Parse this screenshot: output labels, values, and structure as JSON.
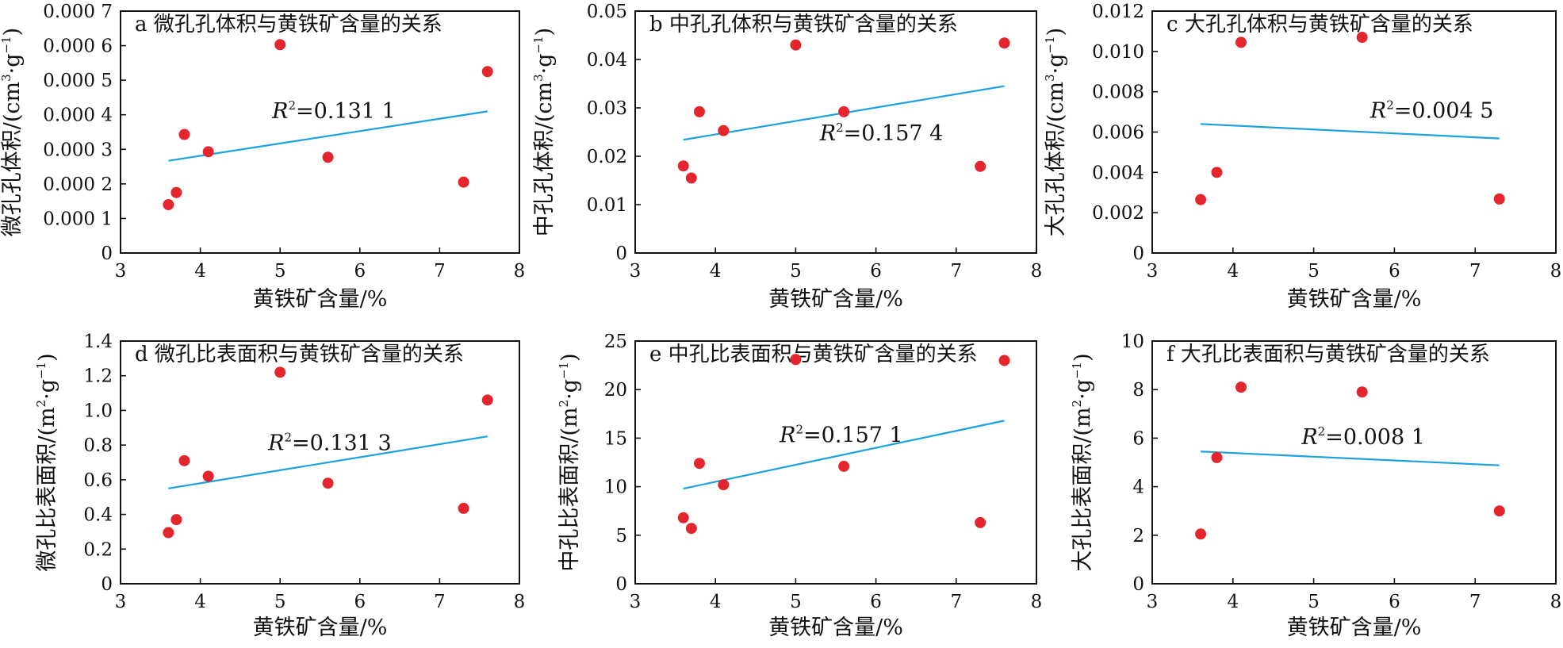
{
  "chart_data": [
    {
      "id": "a",
      "type": "scatter",
      "title": "a 微孔孔体积与黄铁矿含量的关系",
      "xlabel": "黄铁矿含量/%",
      "ylabel": {
        "main": "微孔孔体积/(cm",
        "sup1": "3",
        "mid": "·g",
        "sup2": "−1",
        "end": ")"
      },
      "xlim": [
        3,
        8
      ],
      "ylim": [
        0,
        0.0007
      ],
      "xticks": [
        3,
        4,
        5,
        6,
        7,
        8
      ],
      "xtick_labels": [
        "3",
        "4",
        "5",
        "6",
        "7",
        "8"
      ],
      "yticks": [
        0,
        0.0001,
        0.0002,
        0.0003,
        0.0004,
        0.0005,
        0.0006,
        0.0007
      ],
      "ytick_labels": [
        "0",
        "0.000 1",
        "0.000 2",
        "0.000 3",
        "0.000 4",
        "0.000 5",
        "0.000 6",
        "0.000 7"
      ],
      "x": [
        3.6,
        3.7,
        3.8,
        4.1,
        5.0,
        5.6,
        7.3,
        7.6
      ],
      "y": [
        0.00014,
        0.000175,
        0.000343,
        0.000293,
        0.000603,
        0.000277,
        0.000205,
        0.000525
      ],
      "trendline": {
        "x": [
          3.6,
          7.6
        ],
        "y": [
          0.000267,
          0.00041
        ]
      },
      "r2_label": {
        "R": "R",
        "sup": "2",
        "value": "=0.131 1"
      },
      "r2_pos": {
        "x": 4.9,
        "y": 0.00039
      }
    },
    {
      "id": "b",
      "type": "scatter",
      "title": "b 中孔孔体积与黄铁矿含量的关系",
      "xlabel": "黄铁矿含量/%",
      "ylabel": {
        "main": "中孔孔体积/(cm",
        "sup1": "3",
        "mid": "·g",
        "sup2": "−1",
        "end": ")"
      },
      "xlim": [
        3,
        8
      ],
      "ylim": [
        0,
        0.05
      ],
      "xticks": [
        3,
        4,
        5,
        6,
        7,
        8
      ],
      "xtick_labels": [
        "3",
        "4",
        "5",
        "6",
        "7",
        "8"
      ],
      "yticks": [
        0,
        0.01,
        0.02,
        0.03,
        0.04,
        0.05
      ],
      "ytick_labels": [
        "0",
        "0.01",
        "0.02",
        "0.03",
        "0.04",
        "0.05"
      ],
      "x": [
        3.6,
        3.7,
        3.8,
        4.1,
        5.0,
        5.6,
        7.3,
        7.6
      ],
      "y": [
        0.018,
        0.0155,
        0.0292,
        0.0253,
        0.043,
        0.0292,
        0.0179,
        0.0434
      ],
      "trendline": {
        "x": [
          3.6,
          7.6
        ],
        "y": [
          0.0234,
          0.0345
        ]
      },
      "r2_label": {
        "R": "R",
        "sup": "2",
        "value": "=0.157 4"
      },
      "r2_pos": {
        "x": 5.3,
        "y": 0.0233
      }
    },
    {
      "id": "c",
      "type": "scatter",
      "title": "c 大孔孔体积与黄铁矿含量的关系",
      "xlabel": "黄铁矿含量/%",
      "ylabel": {
        "main": "大孔孔体积/(cm",
        "sup1": "3",
        "mid": "·g",
        "sup2": "−1",
        "end": ")"
      },
      "xlim": [
        3,
        8
      ],
      "ylim": [
        0,
        0.012
      ],
      "xticks": [
        3,
        4,
        5,
        6,
        7,
        8
      ],
      "xtick_labels": [
        "3",
        "4",
        "5",
        "6",
        "7",
        "8"
      ],
      "yticks": [
        0,
        0.002,
        0.004,
        0.006,
        0.008,
        0.01,
        0.012
      ],
      "ytick_labels": [
        "0",
        "0.002",
        "0.004",
        "0.006",
        "0.008",
        "0.010",
        "0.012"
      ],
      "x": [
        3.6,
        3.8,
        4.1,
        5.6,
        7.3
      ],
      "y": [
        0.00265,
        0.004,
        0.01045,
        0.0107,
        0.00268
      ],
      "trendline": {
        "x": [
          3.6,
          7.3
        ],
        "y": [
          0.0064,
          0.00568
        ]
      },
      "r2_label": {
        "R": "R",
        "sup": "2",
        "value": "=0.004 5"
      },
      "r2_pos": {
        "x": 5.7,
        "y": 0.0067
      }
    },
    {
      "id": "d",
      "type": "scatter",
      "title": "d 微孔比表面积与黄铁矿含量的关系",
      "xlabel": "黄铁矿含量/%",
      "ylabel": {
        "main": "微孔比表面积/(m",
        "sup1": "2",
        "mid": "·g",
        "sup2": "−1",
        "end": ")"
      },
      "xlim": [
        3,
        8
      ],
      "ylim": [
        0,
        1.4
      ],
      "xticks": [
        3,
        4,
        5,
        6,
        7,
        8
      ],
      "xtick_labels": [
        "3",
        "4",
        "5",
        "6",
        "7",
        "8"
      ],
      "yticks": [
        0,
        0.2,
        0.4,
        0.6,
        0.8,
        1.0,
        1.2,
        1.4
      ],
      "ytick_labels": [
        "0",
        "0.2",
        "0.4",
        "0.6",
        "0.8",
        "1.0",
        "1.2",
        "1.4"
      ],
      "x": [
        3.6,
        3.7,
        3.8,
        4.1,
        5.0,
        5.6,
        7.3,
        7.6
      ],
      "y": [
        0.295,
        0.37,
        0.71,
        0.62,
        1.22,
        0.58,
        0.435,
        1.06
      ],
      "trendline": {
        "x": [
          3.6,
          7.6
        ],
        "y": [
          0.55,
          0.85
        ]
      },
      "r2_label": {
        "R": "R",
        "sup": "2",
        "value": "=0.131 3"
      },
      "r2_pos": {
        "x": 4.85,
        "y": 0.77
      }
    },
    {
      "id": "e",
      "type": "scatter",
      "title": "e 中孔比表面积与黄铁矿含量的关系",
      "xlabel": "黄铁矿含量/%",
      "ylabel": {
        "main": "中孔比表面积/(m",
        "sup1": "2",
        "mid": "·g",
        "sup2": "−1",
        "end": ")"
      },
      "xlim": [
        3,
        8
      ],
      "ylim": [
        0,
        25
      ],
      "xticks": [
        3,
        4,
        5,
        6,
        7,
        8
      ],
      "xtick_labels": [
        "3",
        "4",
        "5",
        "6",
        "7",
        "8"
      ],
      "yticks": [
        0,
        5,
        10,
        15,
        20,
        25
      ],
      "ytick_labels": [
        "0",
        "5",
        "10",
        "15",
        "20",
        "25"
      ],
      "x": [
        3.6,
        3.7,
        3.8,
        4.1,
        5.0,
        5.6,
        7.3,
        7.6
      ],
      "y": [
        6.8,
        5.7,
        12.4,
        10.2,
        23.1,
        12.1,
        6.3,
        23.0
      ],
      "trendline": {
        "x": [
          3.6,
          7.6
        ],
        "y": [
          9.8,
          16.8
        ]
      },
      "r2_label": {
        "R": "R",
        "sup": "2",
        "value": "=0.157 1"
      },
      "r2_pos": {
        "x": 4.8,
        "y": 14.6
      }
    },
    {
      "id": "f",
      "type": "scatter",
      "title": "f 大孔比表面积与黄铁矿含量的关系",
      "xlabel": "黄铁矿含量/%",
      "ylabel": {
        "main": "大孔比表面积/(m",
        "sup1": "2",
        "mid": "·g",
        "sup2": "−1",
        "end": ")"
      },
      "xlim": [
        3,
        8
      ],
      "ylim": [
        0,
        10
      ],
      "xticks": [
        3,
        4,
        5,
        6,
        7,
        8
      ],
      "xtick_labels": [
        "3",
        "4",
        "5",
        "6",
        "7",
        "8"
      ],
      "yticks": [
        0,
        2,
        4,
        6,
        8,
        10
      ],
      "ytick_labels": [
        "0",
        "2",
        "4",
        "6",
        "8",
        "10"
      ],
      "x": [
        3.6,
        3.8,
        4.1,
        5.6,
        7.3
      ],
      "y": [
        2.05,
        5.2,
        8.1,
        7.9,
        3.0
      ],
      "trendline": {
        "x": [
          3.6,
          7.3
        ],
        "y": [
          5.45,
          4.88
        ]
      },
      "r2_label": {
        "R": "R",
        "sup": "2",
        "value": "=0.008 1"
      },
      "r2_pos": {
        "x": 4.85,
        "y": 5.75
      }
    }
  ],
  "colors": {
    "point": "#e3262d",
    "trendline": "#1ba1e2",
    "axis": "#111111",
    "background": "#ffffff"
  },
  "grid": false
}
